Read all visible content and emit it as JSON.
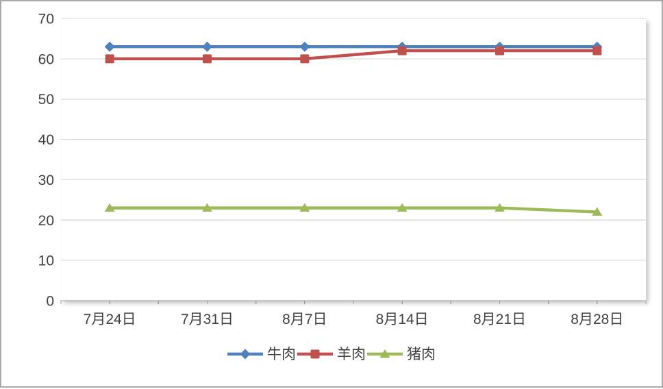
{
  "chart_data": {
    "type": "line",
    "title": "",
    "xlabel": "",
    "ylabel": "",
    "categories": [
      "7月24日",
      "7月31日",
      "8月7日",
      "8月14日",
      "8月21日",
      "8月28日"
    ],
    "series": [
      {
        "name": "牛肉",
        "values": [
          63,
          63,
          63,
          63,
          63,
          63
        ],
        "color": "#4F81BD",
        "marker": "diamond"
      },
      {
        "name": "羊肉",
        "values": [
          60,
          60,
          60,
          62,
          62,
          62
        ],
        "color": "#C0504D",
        "marker": "square"
      },
      {
        "name": "猪肉",
        "values": [
          23,
          23,
          23,
          23,
          23,
          22
        ],
        "color": "#9BBB59",
        "marker": "triangle"
      }
    ],
    "ylim": [
      0,
      70
    ],
    "yticks": [
      0,
      10,
      20,
      30,
      40,
      50,
      60,
      70
    ],
    "grid": true,
    "legend_position": "bottom",
    "colors": {
      "gridline": "#D9D9D9",
      "axis_line": "#9C9C9C",
      "tick_label": "#404040",
      "legend_text": "#404040",
      "plot_background": "#FFFFFF",
      "frame_border": "#A9A9A9"
    }
  }
}
